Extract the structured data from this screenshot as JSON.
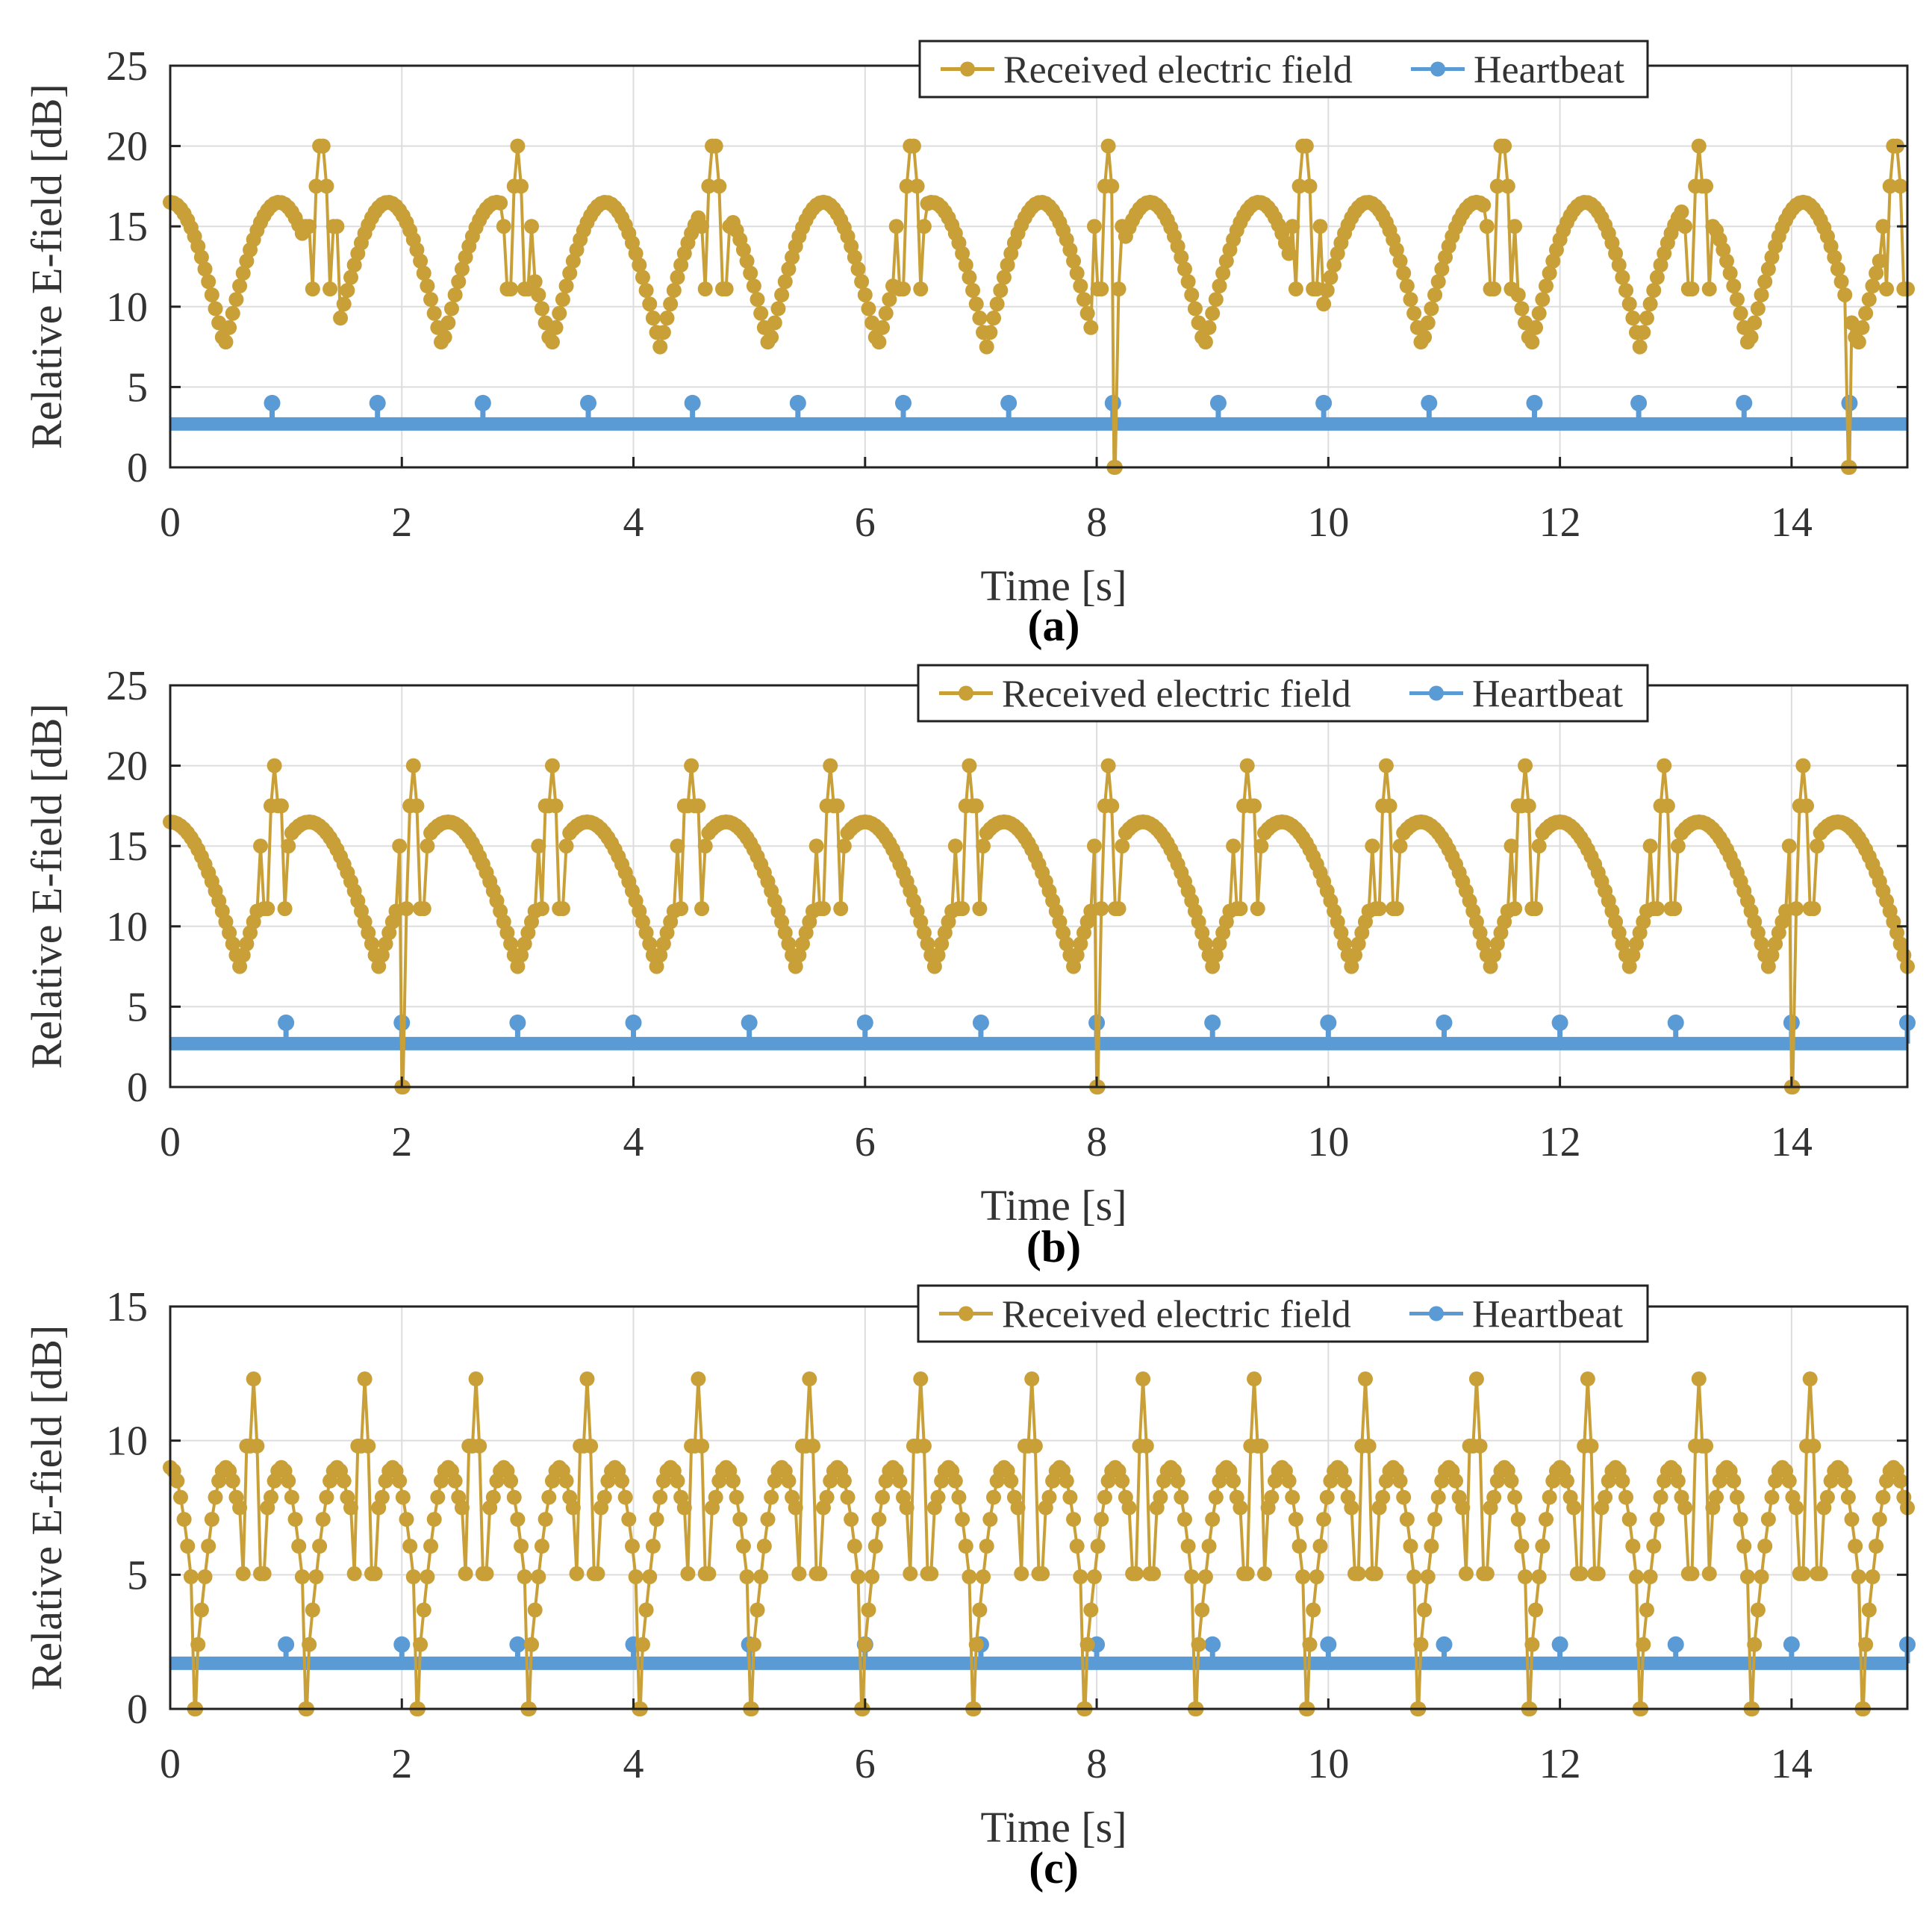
{
  "chart_data": [
    {
      "type": "line",
      "panel_label": "(a)",
      "xlabel": "Time [s]",
      "ylabel": "Relative E-field [dB]",
      "xlim": [
        0,
        15
      ],
      "ylim": [
        0,
        25
      ],
      "xticks": [
        0,
        2,
        4,
        6,
        8,
        10,
        12,
        14
      ],
      "yticks": [
        0,
        5,
        10,
        15,
        20,
        25
      ],
      "grid": true,
      "legend_position": "top-right",
      "legend": [
        "Received electric field",
        "Heartbeat"
      ],
      "series": [
        {
          "name": "Received electric field",
          "color": "#C9A038",
          "pattern": {
            "carrier_period": 0.94,
            "carrier_max": 16.5,
            "carrier_min": 7.5,
            "burst_period": 1.7,
            "burst_first": 1.3,
            "burst_peak": 20,
            "dips_to_zero": [
              8.15,
              14.5
            ]
          }
        },
        {
          "name": "Heartbeat",
          "color": "#5B9BD5",
          "baseline": 2.7,
          "pulse_value": 4.0,
          "pulse_times": [
            0.88,
            1.79,
            2.7,
            3.61,
            4.51,
            5.42,
            6.33,
            7.24,
            8.14,
            9.05,
            9.96,
            10.87,
            11.78,
            12.68,
            13.59,
            14.5
          ]
        }
      ]
    },
    {
      "type": "line",
      "panel_label": "(b)",
      "xlabel": "Time [s]",
      "ylabel": "Relative E-field [dB]",
      "xlim": [
        0,
        15
      ],
      "ylim": [
        0,
        25
      ],
      "xticks": [
        0,
        2,
        4,
        6,
        8,
        10,
        12,
        14
      ],
      "yticks": [
        0,
        5,
        10,
        15,
        20,
        25
      ],
      "grid": true,
      "legend_position": "top-right",
      "legend": [
        "Received electric field",
        "Heartbeat"
      ],
      "series": [
        {
          "name": "Received electric field",
          "color": "#C9A038",
          "pattern": {
            "carrier_period": 1.2,
            "carrier_max": 16.5,
            "carrier_min": 7.5,
            "burst_period": 1.2,
            "burst_first": 0.9,
            "burst_peak": 20,
            "dips_to_zero": [
              2.0,
              8.0,
              14.0
            ]
          }
        },
        {
          "name": "Heartbeat",
          "color": "#5B9BD5",
          "baseline": 2.7,
          "pulse_value": 4.0,
          "pulse_times": [
            1,
            2,
            3,
            4,
            5,
            6,
            7,
            8,
            9,
            10,
            11,
            12,
            13,
            14,
            15
          ]
        }
      ]
    },
    {
      "type": "line",
      "panel_label": "(c)",
      "xlabel": "Time [s]",
      "ylabel": "Relative E-field [dB]",
      "xlim": [
        0,
        15
      ],
      "ylim": [
        0,
        15
      ],
      "xticks": [
        0,
        2,
        4,
        6,
        8,
        10,
        12,
        14
      ],
      "yticks": [
        0,
        5,
        10,
        15
      ],
      "grid": true,
      "legend_position": "top-right",
      "legend": [
        "Received electric field",
        "Heartbeat"
      ],
      "series": [
        {
          "name": "Received electric field",
          "color": "#C9A038",
          "pattern": {
            "carrier_period": 0.48,
            "carrier_max": 9.0,
            "carrier_min": 2.4,
            "burst_period": 0.96,
            "burst_first": 0.72,
            "burst_peak": 12.3,
            "dips_to_zero": [
              0.22,
              1.18,
              2.14,
              3.1,
              4.06,
              5.02,
              5.98,
              6.94,
              7.9,
              8.86,
              9.82,
              10.78,
              11.74,
              12.7,
              13.66,
              14.62
            ]
          }
        },
        {
          "name": "Heartbeat",
          "color": "#5B9BD5",
          "baseline": 1.7,
          "pulse_value": 2.4,
          "pulse_times": [
            1,
            2,
            3,
            4,
            5,
            6,
            7,
            8,
            9,
            10,
            11,
            12,
            13,
            14,
            15
          ]
        }
      ]
    }
  ]
}
